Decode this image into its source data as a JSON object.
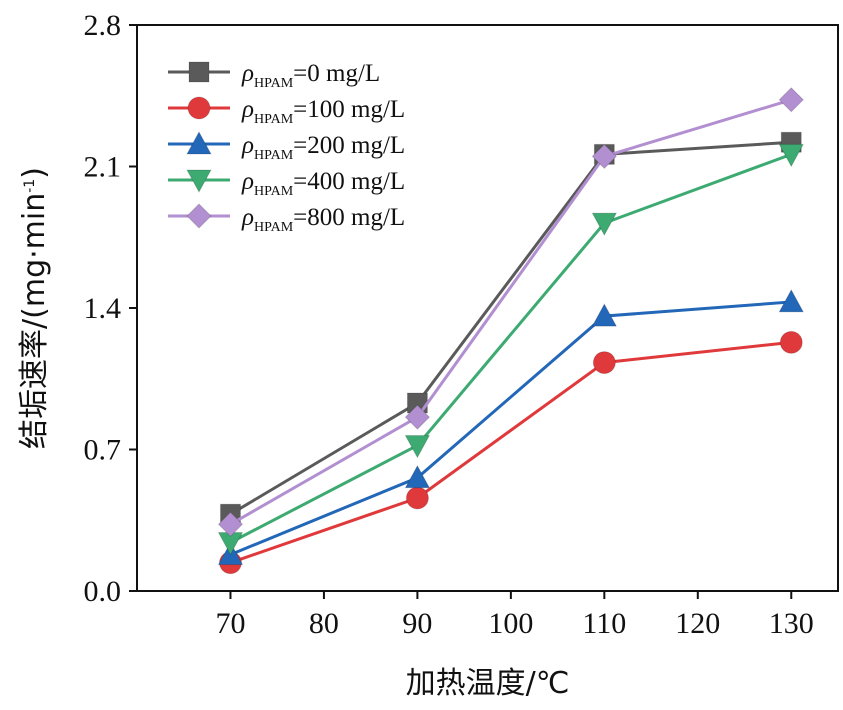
{
  "chart_data": {
    "type": "line",
    "xlabel": "加热温度/℃",
    "ylabel": "结垢速率/(mg·min",
    "ylabel_sup": "-1",
    "ylabel_close": ")",
    "xlim": [
      60,
      135
    ],
    "ylim": [
      0,
      2.8
    ],
    "x_ticks": [
      70,
      80,
      90,
      100,
      110,
      120,
      130
    ],
    "x_tick_labels": [
      "70",
      "80",
      "90",
      "100",
      "110",
      "120",
      "130"
    ],
    "y_ticks": [
      0,
      0.7,
      1.4,
      2.1,
      2.8
    ],
    "y_tick_labels": [
      "0.0",
      "0.7",
      "1.4",
      "2.1",
      "2.8"
    ],
    "legend_position": "top-left",
    "x": [
      70,
      90,
      110,
      130
    ],
    "series": [
      {
        "name_prefix": "ρ",
        "name_sub": "HPAM",
        "name_suffix": "=0 mg/L",
        "marker": "square",
        "color": "#5a5a5a",
        "values": [
          0.38,
          0.93,
          2.16,
          2.22
        ]
      },
      {
        "name_prefix": "ρ",
        "name_sub": "HPAM",
        "name_suffix": "=100 mg/L",
        "marker": "circle",
        "color": "#e0393b",
        "values": [
          0.14,
          0.46,
          1.13,
          1.23
        ]
      },
      {
        "name_prefix": "ρ",
        "name_sub": "HPAM",
        "name_suffix": "=200 mg/L",
        "marker": "triangle-up",
        "color": "#2367b8",
        "values": [
          0.18,
          0.56,
          1.36,
          1.43
        ]
      },
      {
        "name_prefix": "ρ",
        "name_sub": "HPAM",
        "name_suffix": "=400 mg/L",
        "marker": "triangle-down",
        "color": "#3daa72",
        "values": [
          0.24,
          0.72,
          1.82,
          2.16
        ]
      },
      {
        "name_prefix": "ρ",
        "name_sub": "HPAM",
        "name_suffix": "=800 mg/L",
        "marker": "diamond",
        "color": "#b28fd0",
        "values": [
          0.33,
          0.86,
          2.15,
          2.43
        ]
      }
    ]
  }
}
